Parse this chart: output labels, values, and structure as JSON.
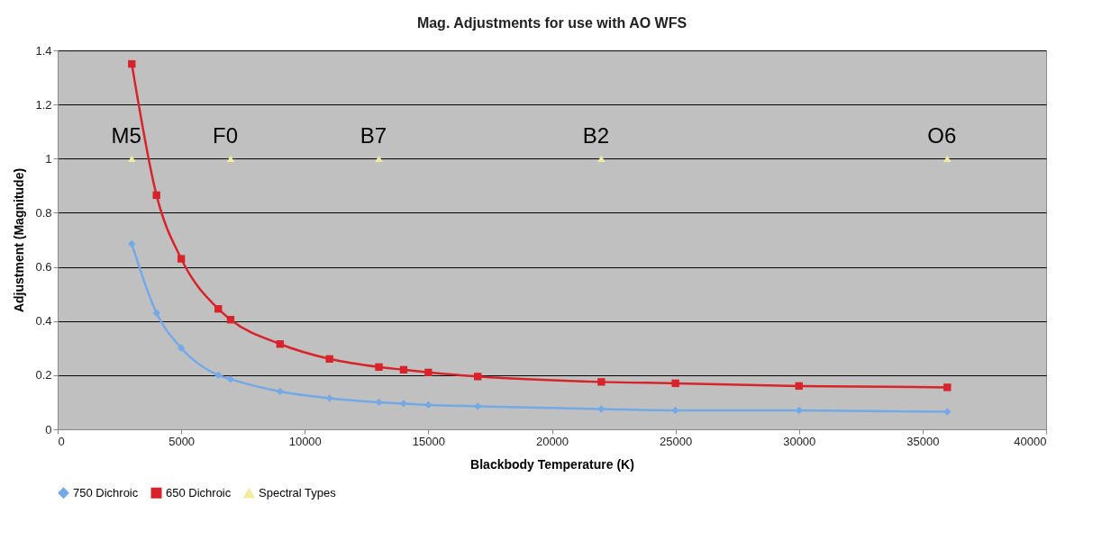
{
  "chart_data": {
    "type": "line",
    "title": "Mag. Adjustments for use with AO WFS",
    "xlabel": "Blackbody Temperature (K)",
    "ylabel": "Adjustment (Magnitude)",
    "xlim": [
      0,
      40000
    ],
    "xticks": [
      0,
      5000,
      10000,
      15000,
      20000,
      25000,
      30000,
      35000,
      40000
    ],
    "ylim": [
      0,
      1.4
    ],
    "yticks": [
      0,
      0.2,
      0.4,
      0.6,
      0.8,
      1,
      1.2,
      1.4
    ],
    "grid": "y",
    "legend": "bottom",
    "series": [
      {
        "name": "750 Dichroic",
        "type": "line",
        "marker": "diamond",
        "color": "#74a9e8",
        "x": [
          3000,
          4000,
          5000,
          6500,
          7000,
          9000,
          11000,
          13000,
          14000,
          15000,
          17000,
          22000,
          25000,
          30000,
          36000
        ],
        "values": [
          0.685,
          0.43,
          0.3,
          0.2,
          0.185,
          0.14,
          0.115,
          0.1,
          0.095,
          0.09,
          0.085,
          0.075,
          0.07,
          0.07,
          0.065
        ]
      },
      {
        "name": "650 Dichroic",
        "type": "line",
        "marker": "square",
        "color": "#d8232a",
        "x": [
          3000,
          4000,
          5000,
          6500,
          7000,
          9000,
          11000,
          13000,
          14000,
          15000,
          17000,
          22000,
          25000,
          30000,
          36000
        ],
        "values": [
          1.35,
          0.865,
          0.63,
          0.445,
          0.405,
          0.315,
          0.26,
          0.23,
          0.22,
          0.21,
          0.195,
          0.175,
          0.17,
          0.16,
          0.155
        ]
      },
      {
        "name": "Spectral Types",
        "type": "scatter",
        "marker": "triangle",
        "color": "#f3ec9c",
        "x": [
          3000,
          7000,
          13000,
          22000,
          36000
        ],
        "values": [
          1,
          1,
          1,
          1,
          1
        ]
      }
    ],
    "annotations": [
      {
        "text": "M5",
        "x": 3000,
        "y": 1
      },
      {
        "text": "F0",
        "x": 7000,
        "y": 1
      },
      {
        "text": "B7",
        "x": 13000,
        "y": 1
      },
      {
        "text": "B2",
        "x": 22000,
        "y": 1
      },
      {
        "text": "O6",
        "x": 36000,
        "y": 1
      }
    ]
  }
}
